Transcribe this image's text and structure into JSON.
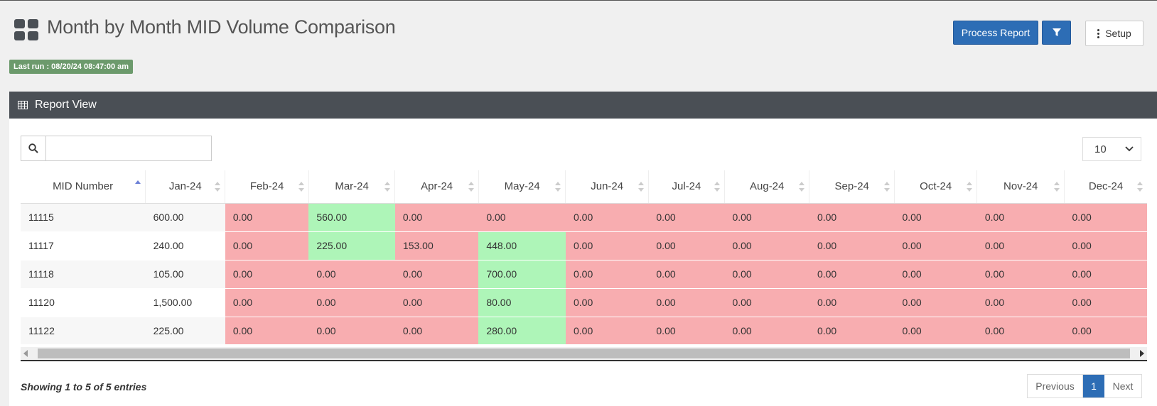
{
  "header": {
    "title": "Month by Month MID Volume Comparison",
    "process_label": "Process Report",
    "setup_label": "Setup",
    "last_run": "Last run : 08/20/24 08:47:00 am"
  },
  "panel": {
    "title": "Report View",
    "search_value": "",
    "page_size": "10"
  },
  "table": {
    "columns": [
      "MID Number",
      "Jan-24",
      "Feb-24",
      "Mar-24",
      "Apr-24",
      "May-24",
      "Jun-24",
      "Jul-24",
      "Aug-24",
      "Sep-24",
      "Oct-24",
      "Nov-24",
      "Dec-24"
    ],
    "rows": [
      [
        "11115",
        "600.00",
        "0.00",
        "560.00",
        "0.00",
        "0.00",
        "0.00",
        "0.00",
        "0.00",
        "0.00",
        "0.00",
        "0.00",
        "0.00"
      ],
      [
        "11117",
        "240.00",
        "0.00",
        "225.00",
        "153.00",
        "448.00",
        "0.00",
        "0.00",
        "0.00",
        "0.00",
        "0.00",
        "0.00",
        "0.00"
      ],
      [
        "11118",
        "105.00",
        "0.00",
        "0.00",
        "0.00",
        "700.00",
        "0.00",
        "0.00",
        "0.00",
        "0.00",
        "0.00",
        "0.00",
        "0.00"
      ],
      [
        "11120",
        "1,500.00",
        "0.00",
        "0.00",
        "0.00",
        "80.00",
        "0.00",
        "0.00",
        "0.00",
        "0.00",
        "0.00",
        "0.00",
        "0.00"
      ],
      [
        "11122",
        "225.00",
        "0.00",
        "0.00",
        "0.00",
        "280.00",
        "0.00",
        "0.00",
        "0.00",
        "0.00",
        "0.00",
        "0.00",
        "0.00"
      ]
    ],
    "cell_status": [
      [
        "",
        "",
        "neg",
        "pos",
        "neg",
        "neg",
        "neg",
        "neg",
        "neg",
        "neg",
        "neg",
        "neg",
        "neg"
      ],
      [
        "",
        "",
        "neg",
        "pos",
        "neg",
        "pos",
        "neg",
        "neg",
        "neg",
        "neg",
        "neg",
        "neg",
        "neg"
      ],
      [
        "",
        "",
        "neg",
        "neg",
        "neg",
        "pos",
        "neg",
        "neg",
        "neg",
        "neg",
        "neg",
        "neg",
        "neg"
      ],
      [
        "",
        "",
        "neg",
        "neg",
        "neg",
        "pos",
        "neg",
        "neg",
        "neg",
        "neg",
        "neg",
        "neg",
        "neg"
      ],
      [
        "",
        "",
        "neg",
        "neg",
        "neg",
        "pos",
        "neg",
        "neg",
        "neg",
        "neg",
        "neg",
        "neg",
        "neg"
      ]
    ],
    "sorted_column": "MID Number",
    "sort_direction": "ascending"
  },
  "footer": {
    "info": "Showing 1 to 5 of 5 entries",
    "prev_label": "Previous",
    "current_page": "1",
    "next_label": "Next"
  },
  "colors": {
    "primary": "#2d6db5",
    "panel_header": "#4a4f55",
    "decrease": "#f8adb0",
    "increase": "#aef5b8",
    "last_run_badge": "#6c9a6c"
  }
}
